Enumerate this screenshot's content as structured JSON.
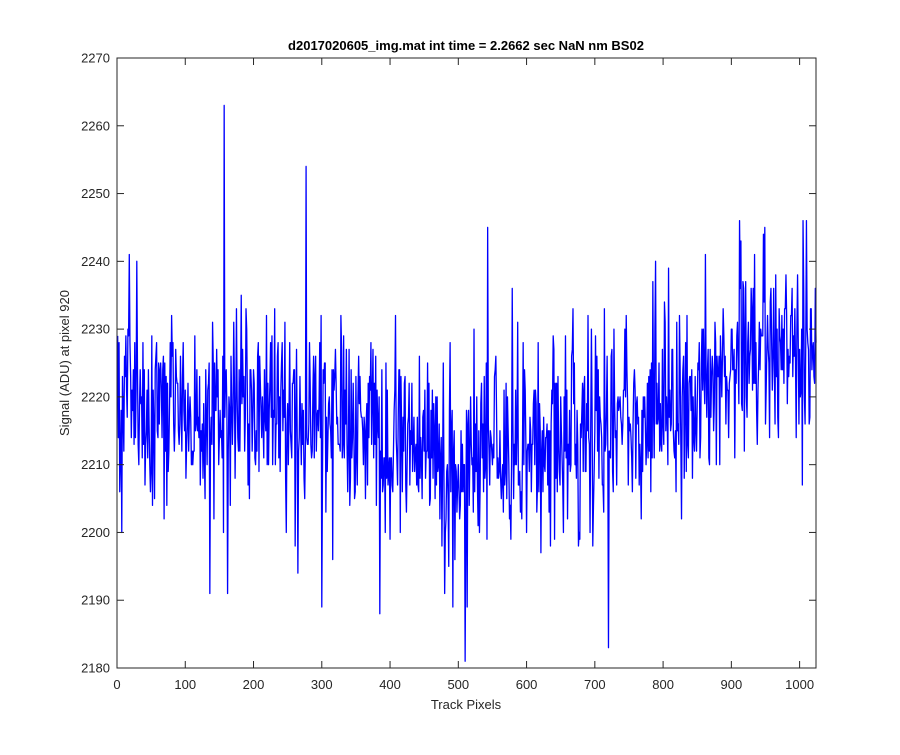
{
  "figure": {
    "background": "#ffffff"
  },
  "chart_data": {
    "type": "line",
    "title": "d2017020605_img.mat int time = 2.2662 sec  NaN nm BS02",
    "xlabel": "Track Pixels",
    "ylabel": "Signal (ADU) at pixel 920",
    "xlim": [
      0,
      1024
    ],
    "ylim": [
      2180,
      2270
    ],
    "xticks": [
      0,
      100,
      200,
      300,
      400,
      500,
      600,
      700,
      800,
      900,
      1000
    ],
    "yticks": [
      2180,
      2190,
      2200,
      2210,
      2220,
      2230,
      2240,
      2250,
      2260,
      2270
    ],
    "grid": false,
    "legend": "none",
    "series": [
      {
        "color": "#0000ff",
        "x_start": 1,
        "x_step": 1,
        "n_points": 1024,
        "baseline": [
          {
            "x": 0,
            "y": 2219
          },
          {
            "x": 150,
            "y": 2218
          },
          {
            "x": 300,
            "y": 2216
          },
          {
            "x": 400,
            "y": 2213
          },
          {
            "x": 500,
            "y": 2211
          },
          {
            "x": 600,
            "y": 2213
          },
          {
            "x": 700,
            "y": 2215
          },
          {
            "x": 800,
            "y": 2219
          },
          {
            "x": 880,
            "y": 2224
          },
          {
            "x": 950,
            "y": 2227
          },
          {
            "x": 1024,
            "y": 2228
          }
        ],
        "noise_sd": 7.5,
        "y_range": [
          2181,
          2263
        ],
        "notable_points": [
          {
            "x": 157,
            "y": 2263
          },
          {
            "x": 277,
            "y": 2254
          },
          {
            "x": 543,
            "y": 2245
          },
          {
            "x": 912,
            "y": 2246
          },
          {
            "x": 1005,
            "y": 2246
          },
          {
            "x": 1010,
            "y": 2246
          },
          {
            "x": 510,
            "y": 2181
          },
          {
            "x": 720,
            "y": 2183
          },
          {
            "x": 385,
            "y": 2188
          },
          {
            "x": 300,
            "y": 2189
          },
          {
            "x": 136,
            "y": 2191
          },
          {
            "x": 162,
            "y": 2191
          },
          {
            "x": 480,
            "y": 2191
          },
          {
            "x": 492,
            "y": 2189
          },
          {
            "x": 513,
            "y": 2189
          }
        ]
      }
    ]
  }
}
